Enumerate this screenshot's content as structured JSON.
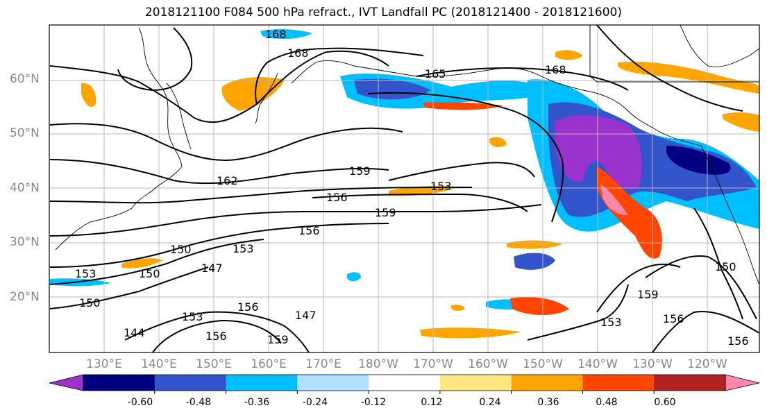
{
  "title": "2018121100 F084 500 hPa refract., IVT Landfall PC (2018121400 - 2018121600)",
  "lat_labels": [
    "60°N",
    "50°N",
    "40°N",
    "30°N",
    "20°N"
  ],
  "lon_labels": [
    "130°E",
    "140°E",
    "150°E",
    "160°E",
    "170°E",
    "180°W",
    "170°W",
    "160°W",
    "150°W",
    "140°W",
    "130°W",
    "120°W"
  ],
  "contour_labels": [
    "168",
    "168",
    "165",
    "168",
    "162",
    "159",
    "156",
    "153",
    "159",
    "156",
    "150",
    "153",
    "150",
    "147",
    "153",
    "150",
    "144",
    "153",
    "156",
    "147",
    "159",
    "156",
    "159",
    "150",
    "156",
    "156",
    "153"
  ],
  "colorbar": {
    "colors": [
      "#9933cc",
      "#000080",
      "#3355cc",
      "#00bfff",
      "#b0e0ff",
      "#ffffff",
      "#ffe680",
      "#ffa500",
      "#ff4500",
      "#b22222",
      "#ff88aa"
    ],
    "tick_labels": [
      "-0.60",
      "-0.48",
      "-0.36",
      "-0.24",
      "-0.12",
      "0.12",
      "0.24",
      "0.36",
      "0.48",
      "0.60"
    ]
  }
}
